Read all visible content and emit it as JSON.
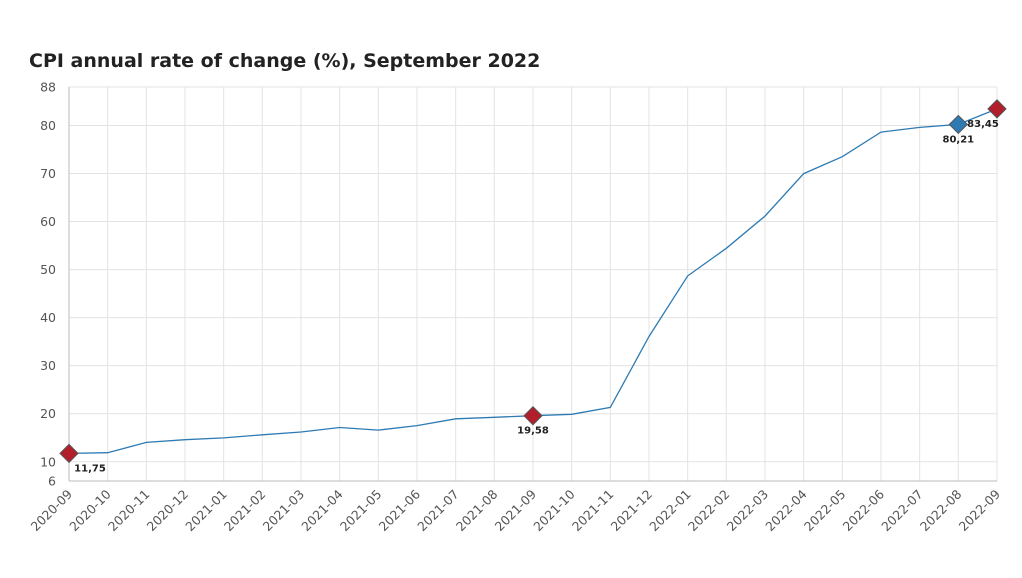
{
  "colors": {
    "line": "#2e7bb4",
    "grid": "#e3e3e3",
    "axis": "#bbbbbb",
    "marker_red": "#b21e2a",
    "marker_blue": "#2e7bb4",
    "marker_stroke": "#555555"
  },
  "chart_data": {
    "type": "line",
    "title": "CPI annual rate of change (%), September 2022",
    "xlabel": "",
    "ylabel": "",
    "ylim": [
      6,
      88
    ],
    "y_ticks": [
      "6",
      "10",
      "20",
      "30",
      "40",
      "50",
      "60",
      "70",
      "80",
      "88"
    ],
    "grid": true,
    "categories": [
      "2020-09",
      "2020-10",
      "2020-11",
      "2020-12",
      "2021-01",
      "2021-02",
      "2021-03",
      "2021-04",
      "2021-05",
      "2021-06",
      "2021-07",
      "2021-08",
      "2021-09",
      "2021-10",
      "2021-11",
      "2021-12",
      "2022-01",
      "2022-02",
      "2022-03",
      "2022-04",
      "2022-05",
      "2022-06",
      "2022-07",
      "2022-08",
      "2022-09"
    ],
    "series": [
      {
        "values": [
          11.75,
          11.89,
          14.03,
          14.6,
          14.97,
          15.61,
          16.19,
          17.14,
          16.59,
          17.53,
          18.95,
          19.25,
          19.58,
          19.89,
          21.31,
          36.08,
          48.69,
          54.44,
          61.14,
          69.97,
          73.5,
          78.62,
          79.6,
          80.21,
          83.45
        ]
      }
    ],
    "highlights": [
      {
        "index": 0,
        "label": "11,75",
        "color": "marker_red"
      },
      {
        "index": 12,
        "label": "19,58",
        "color": "marker_red"
      },
      {
        "index": 23,
        "label": "80,21",
        "color": "marker_blue"
      },
      {
        "index": 24,
        "label": "83,45",
        "color": "marker_red"
      }
    ]
  }
}
